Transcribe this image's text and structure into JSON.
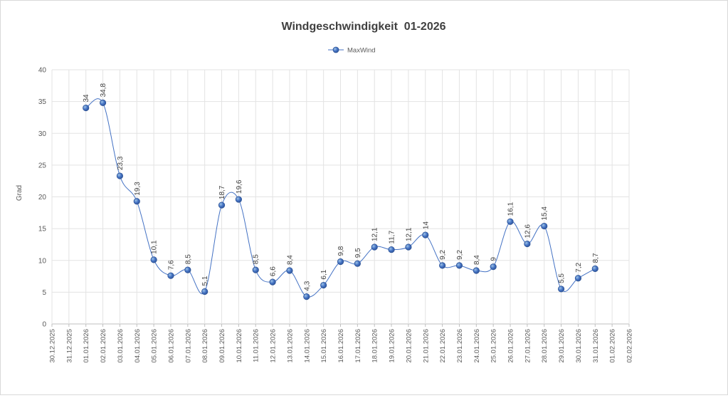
{
  "chart_data": {
    "type": "line",
    "title": "Windgeschwindigkeit  01-2026",
    "ylabel": "Grad",
    "xlabel": "",
    "ylim": [
      0,
      40
    ],
    "yticks": [
      0,
      5,
      10,
      15,
      20,
      25,
      30,
      35,
      40
    ],
    "grid": true,
    "legend_position": "top-center",
    "x_tick_labels": [
      "30.12.2025",
      "31.12.2025",
      "01.01.2026",
      "02.01.2026",
      "03.01.2026",
      "04.01.2026",
      "05.01.2026",
      "06.01.2026",
      "07.01.2026",
      "08.01.2026",
      "09.01.2026",
      "10.01.2026",
      "11.01.2026",
      "12.01.2026",
      "13.01.2026",
      "14.01.2026",
      "15.01.2026",
      "16.01.2026",
      "17.01.2026",
      "18.01.2026",
      "19.01.2026",
      "20.01.2026",
      "21.01.2026",
      "22.01.2026",
      "23.01.2026",
      "24.01.2026",
      "25.01.2026",
      "26.01.2026",
      "27.01.2026",
      "28.01.2026",
      "29.01.2026",
      "30.01.2026",
      "31.01.2026",
      "01.02.2026",
      "02.02.2026"
    ],
    "series": [
      {
        "name": "MaxWind",
        "color": "#4472c4",
        "x": [
          "01.01.2026",
          "02.01.2026",
          "03.01.2026",
          "04.01.2026",
          "05.01.2026",
          "06.01.2026",
          "07.01.2026",
          "08.01.2026",
          "09.01.2026",
          "10.01.2026",
          "11.01.2026",
          "12.01.2026",
          "13.01.2026",
          "14.01.2026",
          "15.01.2026",
          "16.01.2026",
          "17.01.2026",
          "18.01.2026",
          "19.01.2026",
          "20.01.2026",
          "21.01.2026",
          "22.01.2026",
          "23.01.2026",
          "24.01.2026",
          "25.01.2026",
          "26.01.2026",
          "27.01.2026",
          "28.01.2026",
          "29.01.2026",
          "30.01.2026",
          "31.01.2026"
        ],
        "values": [
          34,
          34.8,
          23.3,
          19.3,
          10.1,
          7.6,
          8.5,
          5.1,
          18.7,
          19.6,
          8.5,
          6.6,
          8.4,
          4.3,
          6.1,
          9.8,
          9.5,
          12.1,
          11.7,
          12.1,
          14,
          9.2,
          9.2,
          8.4,
          9,
          16.1,
          12.6,
          15.4,
          5.5,
          7.2,
          8.7
        ],
        "labels": [
          "34",
          "34,8",
          "23,3",
          "19,3",
          "10,1",
          "7,6",
          "8,5",
          "5,1",
          "18,7",
          "19,6",
          "8,5",
          "6,6",
          "8,4",
          "4,3",
          "6,1",
          "9,8",
          "9,5",
          "12,1",
          "11,7",
          "12,1",
          "14",
          "9,2",
          "9,2",
          "8,4",
          "9",
          "16,1",
          "12,6",
          "15,4",
          "5,5",
          "7,2",
          "8,7"
        ]
      }
    ]
  }
}
